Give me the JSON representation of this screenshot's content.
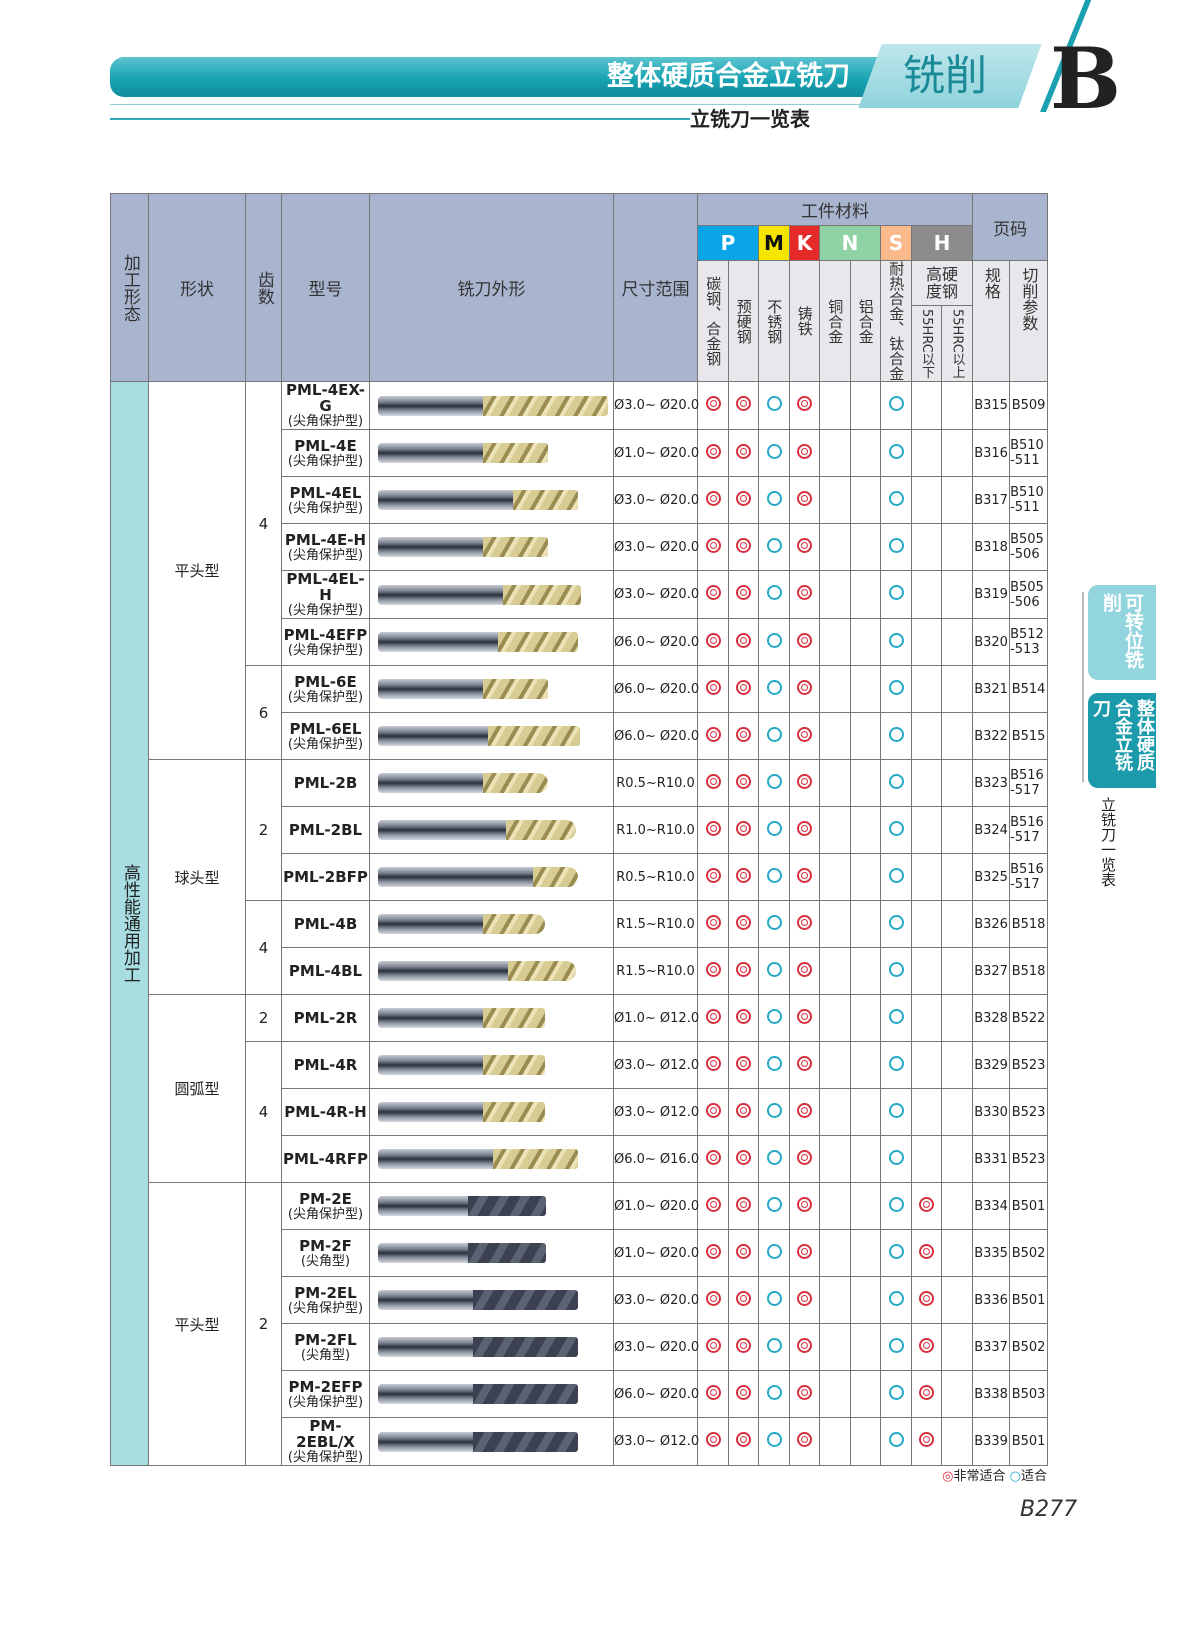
{
  "header": {
    "title": "整体硬质合金立铣刀",
    "section": "铣削",
    "letter": "B",
    "subtitle": "立铣刀一览表"
  },
  "side_tabs": [
    {
      "label": "可转位铣削",
      "active": false
    },
    {
      "label": "整体硬质合金立铣刀",
      "active": true
    }
  ],
  "side_label": "立铣刀一览表",
  "table_headers": {
    "form": "加工形态",
    "shape": "形状",
    "teeth": "齿数",
    "model": "型号",
    "appearance": "铣刀外形",
    "size": "尺寸范围",
    "materials": "工件材料",
    "page": "页码",
    "material_groups": [
      {
        "code": "P",
        "color": "#0aa5e6"
      },
      {
        "code": "M",
        "color": "#f5e500"
      },
      {
        "code": "K",
        "color": "#e52a2a"
      },
      {
        "code": "N",
        "color": "#8fd3a5"
      },
      {
        "code": "S",
        "color": "#f9b98a"
      },
      {
        "code": "H",
        "color": "#8c8c8c"
      }
    ],
    "material_cols": [
      "碳钢、合金钢",
      "预硬钢",
      "不锈钢",
      "铸铁",
      "铜合金",
      "铝合金",
      "耐热合金、钛合金"
    ],
    "hard_steel": "高硬度钢",
    "hard_cols": [
      "55HRC以下",
      "55HRC以上"
    ],
    "spec": "规格",
    "params": "切削参数"
  },
  "form_label": "高性能通用加工",
  "rows": [
    {
      "shape": "平头型",
      "teeth": "4",
      "model": "PML-4EX-G",
      "note": "(尖角保护型)",
      "size": "Ø3.0~ Ø20.0",
      "ratings": [
        "◎",
        "◎",
        "○",
        "◎",
        "",
        "",
        "○",
        "",
        ""
      ],
      "spec": "B315",
      "params": "B509"
    },
    {
      "shape": "平头型",
      "teeth": "4",
      "model": "PML-4E",
      "note": "(尖角保护型)",
      "size": "Ø1.0~ Ø20.0",
      "ratings": [
        "◎",
        "◎",
        "○",
        "◎",
        "",
        "",
        "○",
        "",
        ""
      ],
      "spec": "B316",
      "params": "B510 -511"
    },
    {
      "shape": "平头型",
      "teeth": "4",
      "model": "PML-4EL",
      "note": "(尖角保护型)",
      "size": "Ø3.0~ Ø20.0",
      "ratings": [
        "◎",
        "◎",
        "○",
        "◎",
        "",
        "",
        "○",
        "",
        ""
      ],
      "spec": "B317",
      "params": "B510 -511"
    },
    {
      "shape": "平头型",
      "teeth": "4",
      "model": "PML-4E-H",
      "note": "(尖角保护型)",
      "size": "Ø3.0~ Ø20.0",
      "ratings": [
        "◎",
        "◎",
        "○",
        "◎",
        "",
        "",
        "○",
        "",
        ""
      ],
      "spec": "B318",
      "params": "B505 -506"
    },
    {
      "shape": "平头型",
      "teeth": "4",
      "model": "PML-4EL-H",
      "note": "(尖角保护型)",
      "size": "Ø3.0~ Ø20.0",
      "ratings": [
        "◎",
        "◎",
        "○",
        "◎",
        "",
        "",
        "○",
        "",
        ""
      ],
      "spec": "B319",
      "params": "B505 -506"
    },
    {
      "shape": "平头型",
      "teeth": "4",
      "model": "PML-4EFP",
      "note": "(尖角保护型)",
      "size": "Ø6.0~ Ø20.0",
      "ratings": [
        "◎",
        "◎",
        "○",
        "◎",
        "",
        "",
        "○",
        "",
        ""
      ],
      "spec": "B320",
      "params": "B512 -513"
    },
    {
      "shape": "平头型",
      "teeth": "6",
      "model": "PML-6E",
      "note": "(尖角保护型)",
      "size": "Ø6.0~ Ø20.0",
      "ratings": [
        "◎",
        "◎",
        "○",
        "◎",
        "",
        "",
        "○",
        "",
        ""
      ],
      "spec": "B321",
      "params": "B514"
    },
    {
      "shape": "平头型",
      "teeth": "6",
      "model": "PML-6EL",
      "note": "(尖角保护型)",
      "size": "Ø6.0~ Ø20.0",
      "ratings": [
        "◎",
        "◎",
        "○",
        "◎",
        "",
        "",
        "○",
        "",
        ""
      ],
      "spec": "B322",
      "params": "B515"
    },
    {
      "shape": "球头型",
      "teeth": "2",
      "model": "PML-2B",
      "note": "",
      "size": "R0.5~R10.0",
      "ratings": [
        "◎",
        "◎",
        "○",
        "◎",
        "",
        "",
        "○",
        "",
        ""
      ],
      "spec": "B323",
      "params": "B516 -517"
    },
    {
      "shape": "球头型",
      "teeth": "2",
      "model": "PML-2BL",
      "note": "",
      "size": "R1.0~R10.0",
      "ratings": [
        "◎",
        "◎",
        "○",
        "◎",
        "",
        "",
        "○",
        "",
        ""
      ],
      "spec": "B324",
      "params": "B516 -517"
    },
    {
      "shape": "球头型",
      "teeth": "2",
      "model": "PML-2BFP",
      "note": "",
      "size": "R0.5~R10.0",
      "ratings": [
        "◎",
        "◎",
        "○",
        "◎",
        "",
        "",
        "○",
        "",
        ""
      ],
      "spec": "B325",
      "params": "B516 -517"
    },
    {
      "shape": "球头型",
      "teeth": "4",
      "model": "PML-4B",
      "note": "",
      "size": "R1.5~R10.0",
      "ratings": [
        "◎",
        "◎",
        "○",
        "◎",
        "",
        "",
        "○",
        "",
        ""
      ],
      "spec": "B326",
      "params": "B518"
    },
    {
      "shape": "球头型",
      "teeth": "4",
      "model": "PML-4BL",
      "note": "",
      "size": "R1.5~R10.0",
      "ratings": [
        "◎",
        "◎",
        "○",
        "◎",
        "",
        "",
        "○",
        "",
        ""
      ],
      "spec": "B327",
      "params": "B518"
    },
    {
      "shape": "圆弧型",
      "teeth": "2",
      "model": "PML-2R",
      "note": "",
      "size": "Ø1.0~ Ø12.0",
      "ratings": [
        "◎",
        "◎",
        "○",
        "◎",
        "",
        "",
        "○",
        "",
        ""
      ],
      "spec": "B328",
      "params": "B522"
    },
    {
      "shape": "圆弧型",
      "teeth": "4",
      "model": "PML-4R",
      "note": "",
      "size": "Ø3.0~ Ø12.0",
      "ratings": [
        "◎",
        "◎",
        "○",
        "◎",
        "",
        "",
        "○",
        "",
        ""
      ],
      "spec": "B329",
      "params": "B523"
    },
    {
      "shape": "圆弧型",
      "teeth": "4",
      "model": "PML-4R-H",
      "note": "",
      "size": "Ø3.0~ Ø12.0",
      "ratings": [
        "◎",
        "◎",
        "○",
        "◎",
        "",
        "",
        "○",
        "",
        ""
      ],
      "spec": "B330",
      "params": "B523"
    },
    {
      "shape": "圆弧型",
      "teeth": "4",
      "model": "PML-4RFP",
      "note": "",
      "size": "Ø6.0~ Ø16.0",
      "ratings": [
        "◎",
        "◎",
        "○",
        "◎",
        "",
        "",
        "○",
        "",
        ""
      ],
      "spec": "B331",
      "params": "B523"
    },
    {
      "shape": "平头型 ",
      "teeth": "2",
      "model": "PM-2E",
      "note": "(尖角保护型)",
      "size": "Ø1.0~ Ø20.0",
      "ratings": [
        "◎",
        "◎",
        "○",
        "◎",
        "",
        "",
        "○",
        "◎",
        ""
      ],
      "spec": "B334",
      "params": "B501"
    },
    {
      "shape": "平头型 ",
      "teeth": "2",
      "model": "PM-2F",
      "note": "(尖角型)",
      "size": "Ø1.0~ Ø20.0",
      "ratings": [
        "◎",
        "◎",
        "○",
        "◎",
        "",
        "",
        "○",
        "◎",
        ""
      ],
      "spec": "B335",
      "params": "B502"
    },
    {
      "shape": "平头型 ",
      "teeth": "2",
      "model": "PM-2EL",
      "note": "(尖角保护型)",
      "size": "Ø3.0~ Ø20.0",
      "ratings": [
        "◎",
        "◎",
        "○",
        "◎",
        "",
        "",
        "○",
        "◎",
        ""
      ],
      "spec": "B336",
      "params": "B501"
    },
    {
      "shape": "平头型 ",
      "teeth": "2",
      "model": "PM-2FL",
      "note": "(尖角型)",
      "size": "Ø3.0~ Ø20.0",
      "ratings": [
        "◎",
        "◎",
        "○",
        "◎",
        "",
        "",
        "○",
        "◎",
        ""
      ],
      "spec": "B337",
      "params": "B502"
    },
    {
      "shape": "平头型 ",
      "teeth": "2",
      "model": "PM-2EFP",
      "note": "(尖角保护型)",
      "size": "Ø6.0~ Ø20.0",
      "ratings": [
        "◎",
        "◎",
        "○",
        "◎",
        "",
        "",
        "○",
        "◎",
        ""
      ],
      "spec": "B338",
      "params": "B503"
    },
    {
      "shape": "平头型 ",
      "teeth": "2",
      "model": "PM-2EBL/X",
      "note": "(尖角保护型)",
      "size": "Ø3.0~ Ø12.0",
      "ratings": [
        "◎",
        "◎",
        "○",
        "◎",
        "",
        "",
        "○",
        "◎",
        ""
      ],
      "spec": "B339",
      "params": "B501"
    }
  ],
  "legend": {
    "strong": "◎非常适合",
    "ok": "○适合",
    "strong_color": "#d8303e",
    "ok_color": "#25a9c7"
  },
  "page_number": "B277"
}
